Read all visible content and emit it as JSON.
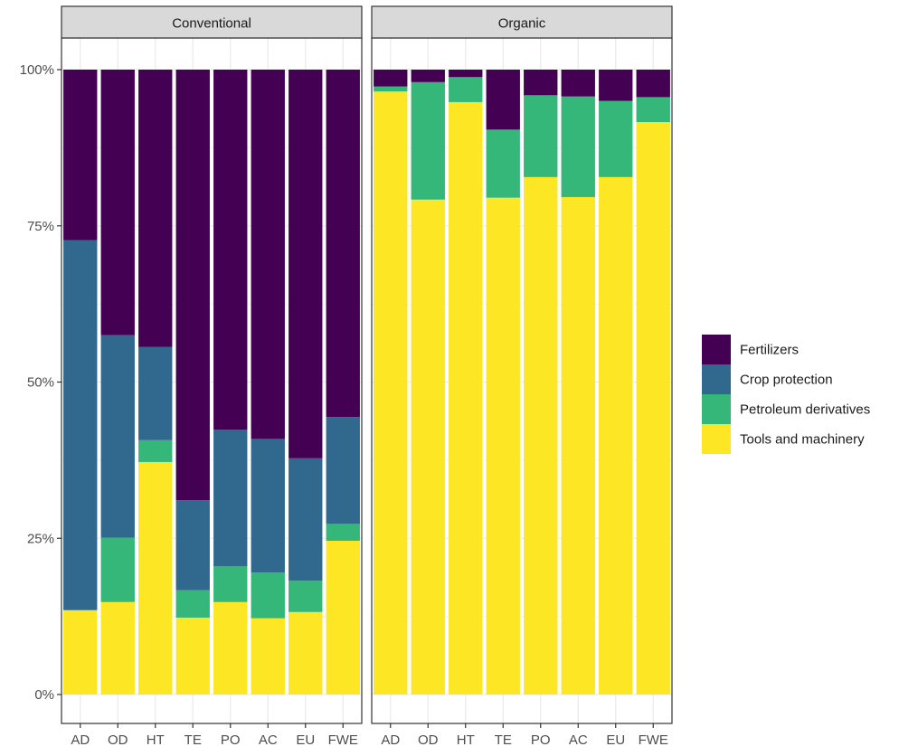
{
  "chart_data": {
    "type": "bar",
    "stacked": true,
    "percent": true,
    "panels": [
      "Conventional",
      "Organic"
    ],
    "categories": [
      "AD",
      "OD",
      "HT",
      "TE",
      "PO",
      "AC",
      "EU",
      "FWE"
    ],
    "y_ticks": [
      0,
      25,
      50,
      75,
      100
    ],
    "y_tick_labels": [
      "0%",
      "25%",
      "50%",
      "75%",
      "100%"
    ],
    "ylim": [
      0,
      100
    ],
    "grid": true,
    "legend_position": "right",
    "xlabel": "",
    "ylabel": "",
    "series": [
      {
        "name": "Tools and machinery",
        "color": "#FDE725",
        "values": {
          "Conventional": [
            13.5,
            14.8,
            37.2,
            12.3,
            14.8,
            12.2,
            13.2,
            24.6
          ],
          "Organic": [
            96.5,
            79.2,
            94.8,
            79.5,
            82.8,
            79.6,
            82.8,
            91.6
          ]
        }
      },
      {
        "name": "Petroleum derivatives",
        "color": "#35B779",
        "values": {
          "Conventional": [
            0.0,
            10.3,
            3.5,
            4.4,
            5.7,
            7.3,
            5.0,
            2.7
          ],
          "Organic": [
            0.8,
            18.8,
            4.0,
            10.9,
            13.1,
            16.1,
            12.2,
            4.0
          ]
        }
      },
      {
        "name": "Crop protection",
        "color": "#31688E",
        "values": {
          "Conventional": [
            59.2,
            32.4,
            14.9,
            14.4,
            21.9,
            21.4,
            19.6,
            17.1
          ],
          "Organic": [
            0.0,
            0.0,
            0.0,
            0.0,
            0.0,
            0.0,
            0.0,
            0.0
          ]
        }
      },
      {
        "name": "Fertilizers",
        "color": "#440154",
        "values": {
          "Conventional": [
            27.3,
            42.5,
            44.4,
            68.9,
            57.6,
            59.1,
            62.2,
            55.6
          ],
          "Organic": [
            2.7,
            2.0,
            1.2,
            9.6,
            4.1,
            4.3,
            5.0,
            4.4
          ]
        }
      }
    ],
    "legend_order": [
      "Fertilizers",
      "Crop protection",
      "Petroleum derivatives",
      "Tools and machinery"
    ]
  }
}
